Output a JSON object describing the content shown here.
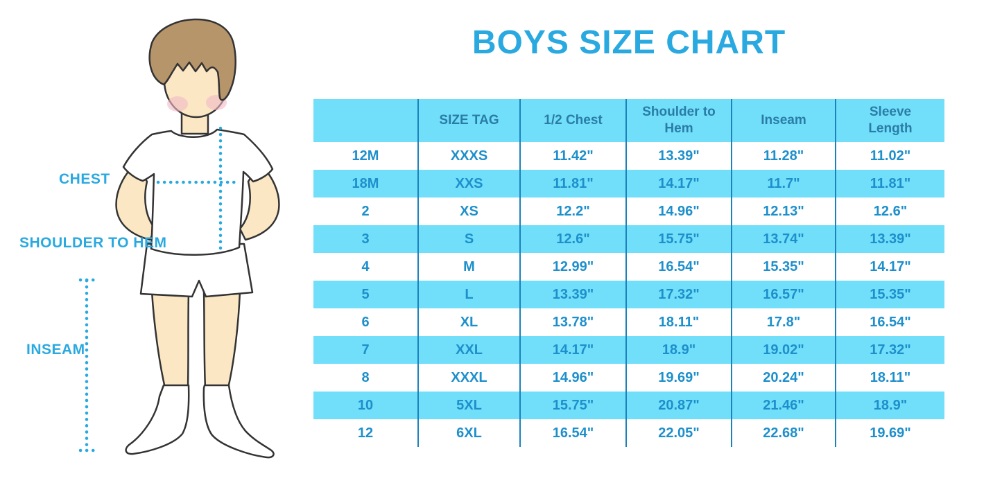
{
  "title": "BOYS SIZE CHART",
  "figure": {
    "labels": {
      "chest": "CHEST",
      "shoulder_to_hem": "SHOULDER TO HEM",
      "inseam": "INSEAM"
    }
  },
  "colors": {
    "accent": "#29A9E0",
    "stripe": "#71DFFA",
    "line": "#1C82BB",
    "cell_text": "#1D8FCB",
    "header_text": "#2A7CA6",
    "skin": "#FBE7C4",
    "hair": "#B6956B",
    "cheek": "#F2B9C6",
    "outline": "#333333"
  },
  "chart_data": {
    "type": "table",
    "title": "BOYS SIZE CHART",
    "columns": [
      "",
      "SIZE TAG",
      "1/2 Chest",
      "Shoulder to Hem",
      "Inseam",
      "Sleeve Length"
    ],
    "rows": [
      [
        "12M",
        "XXXS",
        "11.42\"",
        "13.39\"",
        "11.28\"",
        "11.02\""
      ],
      [
        "18M",
        "XXS",
        "11.81\"",
        "14.17\"",
        "11.7\"",
        "11.81\""
      ],
      [
        "2",
        "XS",
        "12.2\"",
        "14.96\"",
        "12.13\"",
        "12.6\""
      ],
      [
        "3",
        "S",
        "12.6\"",
        "15.75\"",
        "13.74\"",
        "13.39\""
      ],
      [
        "4",
        "M",
        "12.99\"",
        "16.54\"",
        "15.35\"",
        "14.17\""
      ],
      [
        "5",
        "L",
        "13.39\"",
        "17.32\"",
        "16.57\"",
        "15.35\""
      ],
      [
        "6",
        "XL",
        "13.78\"",
        "18.11\"",
        "17.8\"",
        "16.54\""
      ],
      [
        "7",
        "XXL",
        "14.17\"",
        "18.9\"",
        "19.02\"",
        "17.32\""
      ],
      [
        "8",
        "XXXL",
        "14.96\"",
        "19.69\"",
        "20.24\"",
        "18.11\""
      ],
      [
        "10",
        "5XL",
        "15.75\"",
        "20.87\"",
        "21.46\"",
        "18.9\""
      ],
      [
        "12",
        "6XL",
        "16.54\"",
        "22.05\"",
        "22.68\"",
        "19.69\""
      ]
    ],
    "layout": {
      "zebra_striping": "white and light-cyan alternating rows, header cyan",
      "grid": "vertical column dividers only"
    }
  }
}
